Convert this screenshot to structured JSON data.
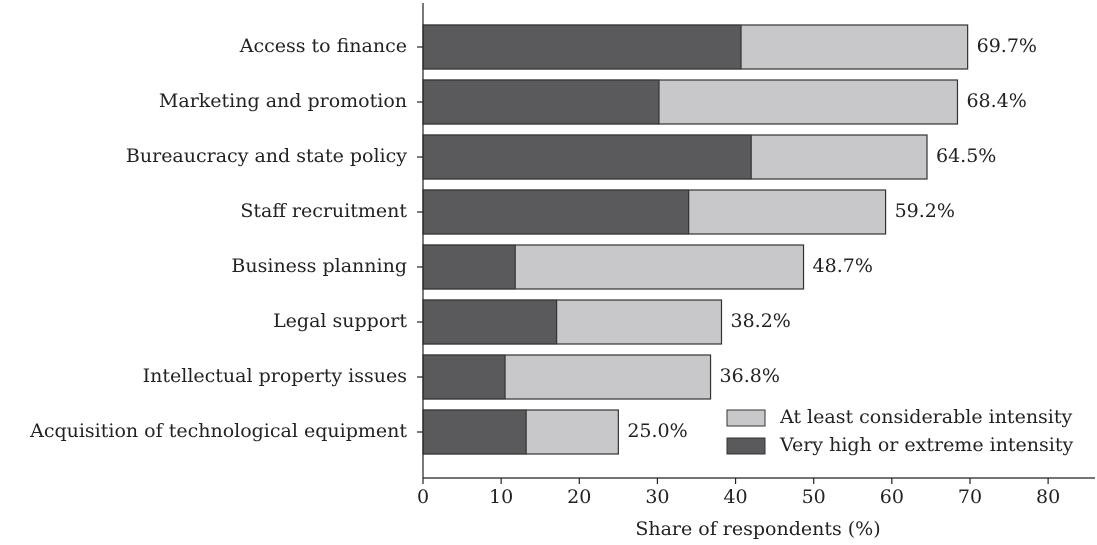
{
  "chart_data": {
    "type": "bar",
    "orientation": "horizontal",
    "overlap": true,
    "x_label": "Share of respondents (%)",
    "categories": [
      "Access to finance",
      "Marketing and promotion",
      "Bureaucracy and state policy",
      "Staff recruitment",
      "Business planning",
      "Legal support",
      "Intellectual property issues",
      "Acquisition of technological equipment"
    ],
    "series": [
      {
        "name": "At least considerable intensity",
        "color": "#c8c8ca",
        "values": [
          69.7,
          68.4,
          64.5,
          59.2,
          48.7,
          38.2,
          36.8,
          25.0
        ],
        "value_labels": [
          "69.7%",
          "68.4%",
          "64.5%",
          "59.2%",
          "48.7%",
          "38.2%",
          "36.8%",
          "25.0%"
        ]
      },
      {
        "name": "Very high or extreme intensity",
        "color": "#5a5a5c",
        "values": [
          40.7,
          30.2,
          42.0,
          34.0,
          11.8,
          17.1,
          10.5,
          13.2
        ]
      }
    ],
    "xlim": [
      0,
      86
    ],
    "xticks": [
      0,
      10,
      20,
      30,
      40,
      50,
      60,
      70,
      80
    ],
    "legend": "lower right"
  }
}
